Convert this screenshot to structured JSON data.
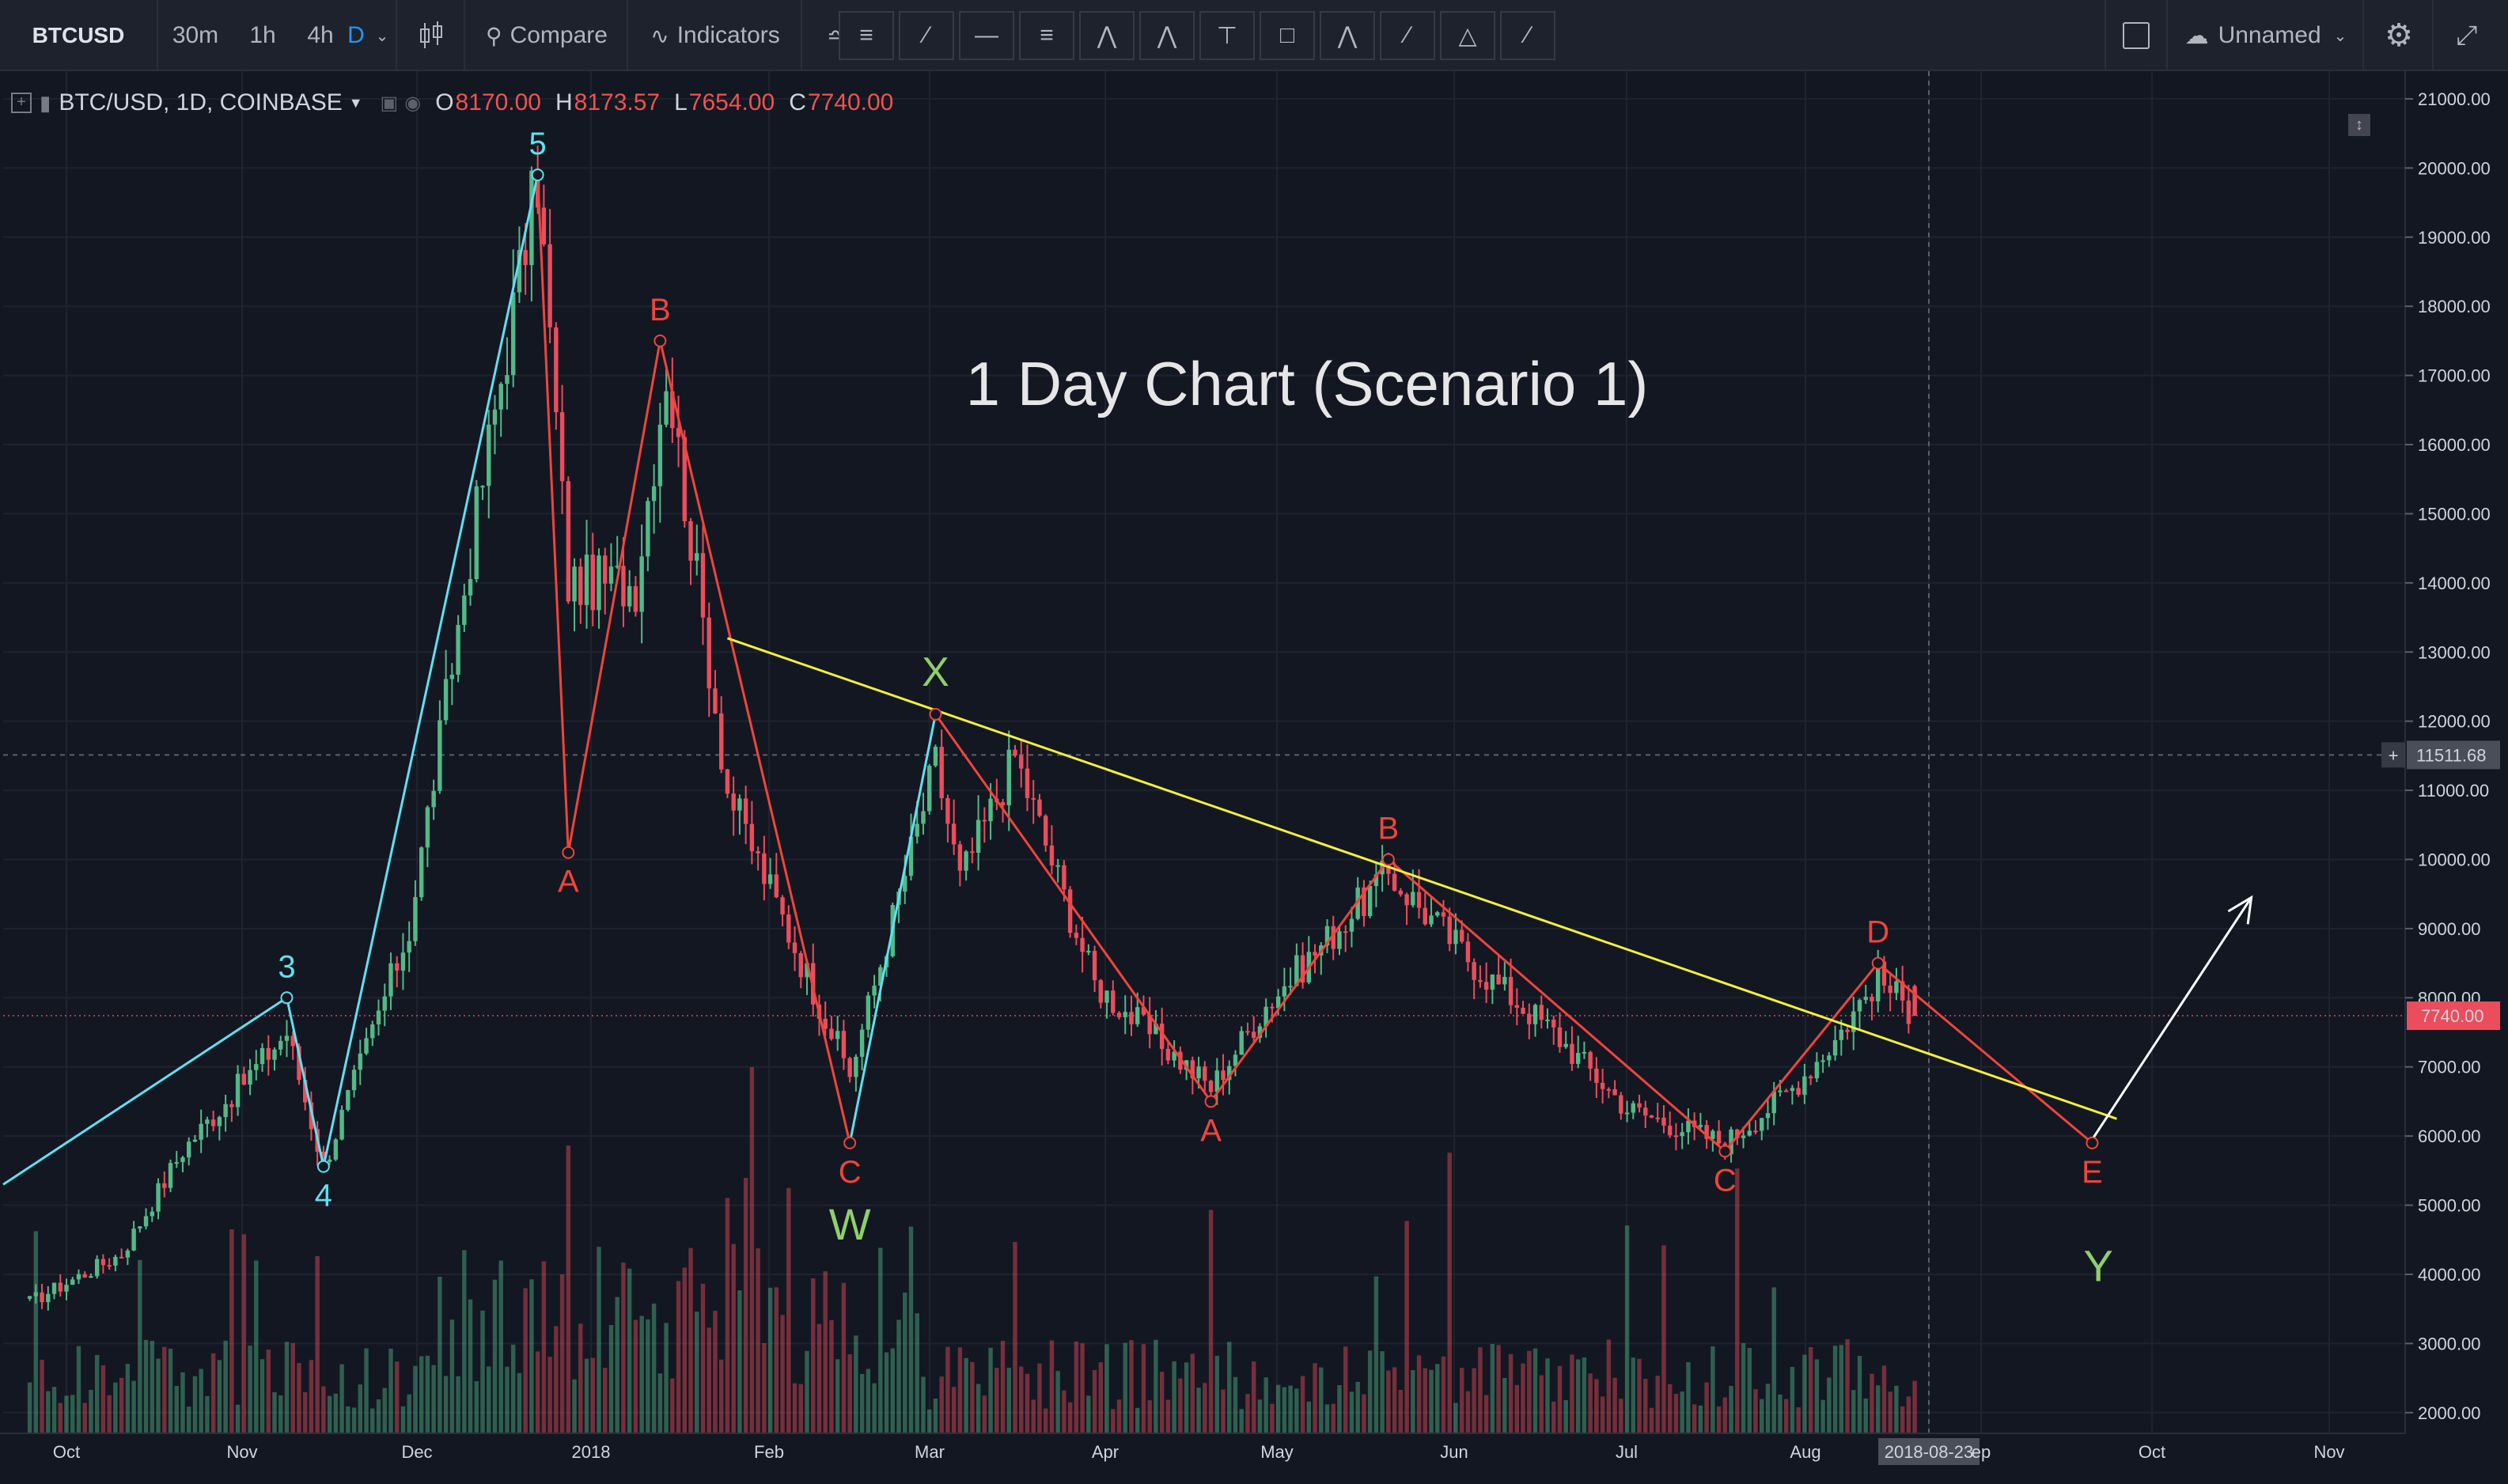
{
  "toolbar": {
    "symbol": "BTCUSD",
    "intervals": [
      "30m",
      "1h",
      "4h",
      "D"
    ],
    "active_interval": "D",
    "compare_label": "Compare",
    "indicators_label": "Indicators",
    "layout_name": "Unnamed",
    "draw_tools": [
      "lines-icon",
      "trend-line-icon",
      "horizontal-ray-icon",
      "fib-icon",
      "pattern-15-icon",
      "pattern-ae-icon",
      "measure-icon",
      "rectangle-icon",
      "pattern-ac-icon",
      "brush-icon",
      "triangle-icon",
      "path-icon"
    ]
  },
  "legend": {
    "title": "BTC/USD, 1D, COINBASE",
    "open_label": "O",
    "open": "8170.00",
    "high_label": "H",
    "high": "8173.57",
    "low_label": "L",
    "low": "7654.00",
    "close_label": "C",
    "close": "7740.00"
  },
  "chart_data": {
    "type": "candlestick",
    "title": "1 Day Chart (Scenario 1)",
    "ylim": [
      1700,
      21400
    ],
    "y_ticks": [
      "21000.00",
      "20000.00",
      "19000.00",
      "18000.00",
      "17000.00",
      "16000.00",
      "15000.00",
      "14000.00",
      "13000.00",
      "12000.00",
      "11000.00",
      "10000.00",
      "9000.00",
      "8000.00",
      "7000.00",
      "6000.00",
      "5000.00",
      "4000.00",
      "3000.00",
      "2000.00"
    ],
    "x_ticks": [
      "Oct",
      "Nov",
      "Dec",
      "2018",
      "Feb",
      "Mar",
      "Apr",
      "May",
      "Jun",
      "Jul",
      "Aug",
      "2018-08-23",
      "ep",
      "Oct",
      "Nov"
    ],
    "crosshair_price": "11511.68",
    "crosshair_date": "2018-08-23",
    "last_price": "7740.00",
    "colors": {
      "up": "#53b987",
      "down": "#eb4d5c",
      "impulse": "#5ee1f0",
      "corrective": "#f0443c",
      "trendline": "#f5ef3a",
      "cycle_label": "#8fcf6a",
      "arrow": "#ffffff"
    },
    "price_anchors": [
      {
        "date": "2017-09-25",
        "price": 3600
      },
      {
        "date": "2017-10-10",
        "price": 4300
      },
      {
        "date": "2017-10-20",
        "price": 5800
      },
      {
        "date": "2017-11-06",
        "price": 7500
      },
      {
        "date": "2017-11-12",
        "price": 5560
      },
      {
        "date": "2017-11-26",
        "price": 9000
      },
      {
        "date": "2017-12-07",
        "price": 15000
      },
      {
        "date": "2017-12-17",
        "price": 19900
      },
      {
        "date": "2017-12-22",
        "price": 14000
      },
      {
        "date": "2018-01-02",
        "price": 14000
      },
      {
        "date": "2018-01-07",
        "price": 17100
      },
      {
        "date": "2018-01-17",
        "price": 11000
      },
      {
        "date": "2018-02-06",
        "price": 6900
      },
      {
        "date": "2018-02-20",
        "price": 11400
      },
      {
        "date": "2018-02-24",
        "price": 9700
      },
      {
        "date": "2018-03-05",
        "price": 11500
      },
      {
        "date": "2018-03-18",
        "price": 8200
      },
      {
        "date": "2018-04-06",
        "price": 6700
      },
      {
        "date": "2018-04-15",
        "price": 7900
      },
      {
        "date": "2018-05-05",
        "price": 9800
      },
      {
        "date": "2018-05-20",
        "price": 8400
      },
      {
        "date": "2018-06-01",
        "price": 7500
      },
      {
        "date": "2018-06-13",
        "price": 6400
      },
      {
        "date": "2018-06-29",
        "price": 5900
      },
      {
        "date": "2018-07-10",
        "price": 6700
      },
      {
        "date": "2018-07-17",
        "price": 7400
      },
      {
        "date": "2018-07-24",
        "price": 8300
      },
      {
        "date": "2018-07-30",
        "price": 7740
      }
    ],
    "wave_points": [
      {
        "label": "3",
        "date": "2017-11-06",
        "price": 8000,
        "group": "impulse"
      },
      {
        "label": "4",
        "date": "2017-11-12",
        "price": 5560,
        "group": "impulse"
      },
      {
        "label": "5",
        "date": "2017-12-17",
        "price": 19900,
        "group": "impulse"
      },
      {
        "label": "A",
        "date": "2017-12-22",
        "price": 10100,
        "group": "corrective"
      },
      {
        "label": "B",
        "date": "2018-01-06",
        "price": 17500,
        "group": "corrective"
      },
      {
        "label": "C",
        "date": "2018-02-06",
        "price": 5900,
        "group": "corrective"
      },
      {
        "label": "X",
        "date": "2018-02-20",
        "price": 12100,
        "group": "corrective"
      },
      {
        "label": "A",
        "date": "2018-04-06",
        "price": 6500,
        "group": "corrective"
      },
      {
        "label": "B",
        "date": "2018-05-05",
        "price": 10000,
        "group": "corrective"
      },
      {
        "label": "C",
        "date": "2018-06-29",
        "price": 5780,
        "group": "corrective"
      },
      {
        "label": "D",
        "date": "2018-07-24",
        "price": 8500,
        "group": "corrective"
      },
      {
        "label": "E",
        "date": "2018-08-28",
        "price": 5900,
        "group": "corrective"
      }
    ],
    "cycle_labels": [
      {
        "label": "W",
        "date": "2018-02-06",
        "price": 4500
      },
      {
        "label": "Y",
        "date": "2018-08-29",
        "price": 3900
      }
    ],
    "trendline": {
      "start": {
        "date": "2018-01-17",
        "price": 13200
      },
      "end": {
        "date": "2018-09-01",
        "price": 6250
      }
    },
    "projection_arrow": {
      "start": {
        "date": "2018-08-28",
        "price": 5950
      },
      "end": {
        "date": "2018-09-23",
        "price": 9450
      }
    }
  }
}
